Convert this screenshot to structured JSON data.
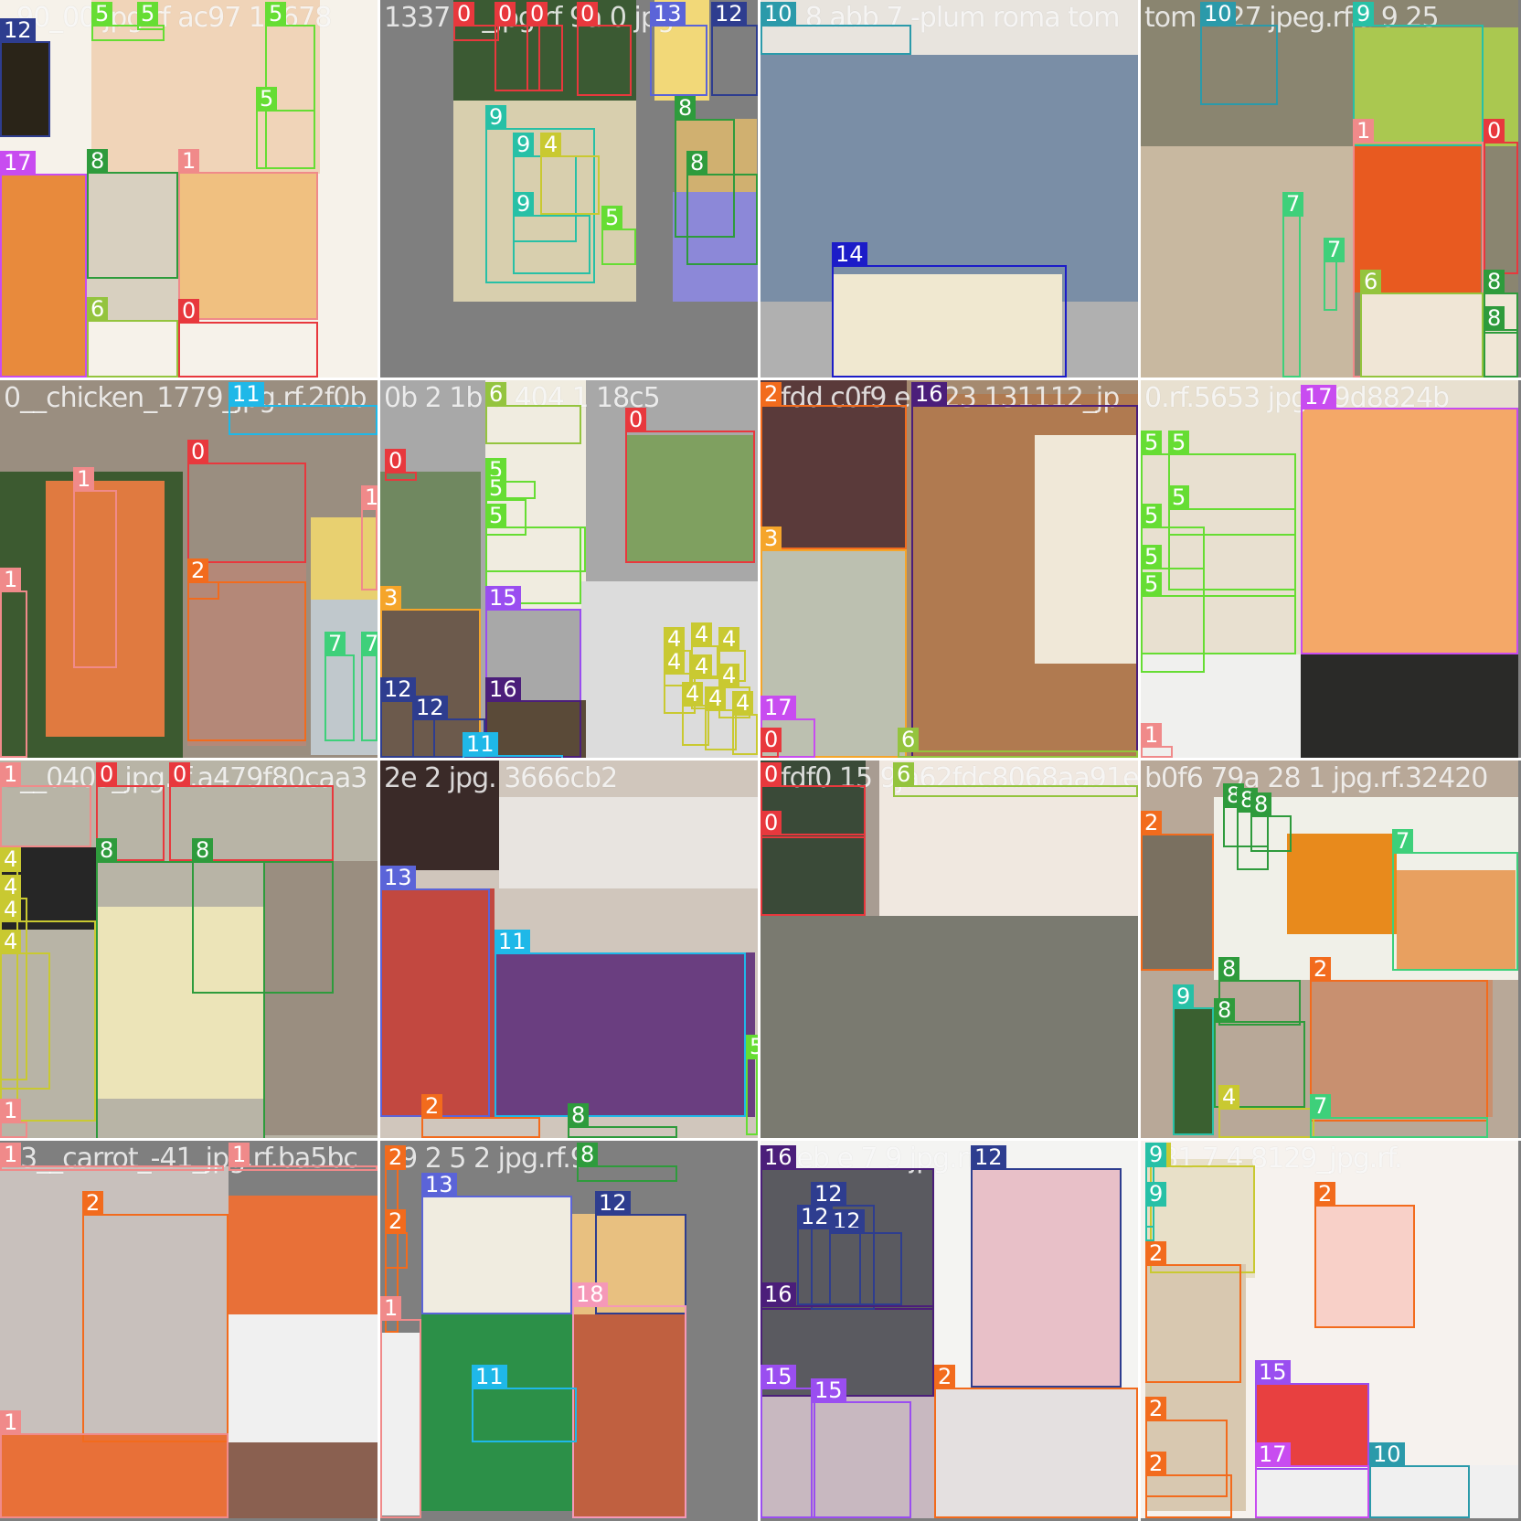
{
  "image": {
    "title": "",
    "kind": "object-detection training batch mosaic"
  },
  "class_colors": {
    "0": "#e8383d",
    "1": "#f08a8a",
    "2": "#f26b1d",
    "3": "#f5a52a",
    "4": "#c9c931",
    "5": "#66dd33",
    "6": "#94c43e",
    "7": "#3ed07a",
    "8": "#2e9b3c",
    "9": "#27c0a6",
    "10": "#2b9aaa",
    "11": "#1fb8e8",
    "12": "#2e3d8f",
    "13": "#5b64d8",
    "14": "#1c1cc8",
    "15": "#9a4ef0",
    "16": "#4b1e7a",
    "17": "#c84cf0",
    "18": "#f598b8"
  },
  "tiles": [
    {
      "filename": "_90_00 jpg rf ac97 17678",
      "bg": "#ffffff"
    },
    {
      "filename": "1337 7 _jpg.rf 9a 0 jpg",
      "bg": "#c4bfb4"
    },
    {
      "filename": "10 8 abb 7 -plum roma tom",
      "bg": "#8da0b8"
    },
    {
      "filename": "tom 2 27 jpeg.rf.a 9 25",
      "bg": "#8a8f82"
    },
    {
      "filename": "0__chicken_1779_jpg.rf.2f0b",
      "bg": "#9a8e80"
    },
    {
      "filename": "0b 2 1b 7 404 1 18c5",
      "bg": "#bab6ae"
    },
    {
      "filename": "2fdd c0f9 e7123 131112_jp",
      "bg": "#a58a70"
    },
    {
      "filename": "0.rf.5653 jpg.r 9d8824b",
      "bg": "#e8d8c8"
    },
    {
      "filename": "1__0405_jpg.rf.a479f80caa3",
      "bg": "#b8b4a6"
    },
    {
      "filename": "2e 2 jpg. 3666cb2",
      "bg": "#d0c6bc"
    },
    {
      "filename": "1fdf0 15 9ja62fdc8068aa91e",
      "bg": "#a89c92"
    },
    {
      "filename": "b0f6 79a 28 1 jpg.rf.32420",
      "bg": "#b8a898"
    },
    {
      "filename": "13__carrot_-41_jpg.rf.ba5bc",
      "bg": "#bcb2ac"
    },
    {
      "filename": "79 2 5 2 jpg.rf.9",
      "bg": "#e6c2a8"
    },
    {
      "filename": "a3eb e 7 9 jpg.rf.f5",
      "bg": "#c0b8c0"
    },
    {
      "filename": "981 7 4 8129_jpg.rf.",
      "bg": "#f0e8e0"
    }
  ],
  "boxes": [
    [
      0,
      "12",
      0,
      45,
      55,
      150
    ],
    [
      0,
      "5",
      100,
      8,
      180,
      45
    ],
    [
      0,
      "5",
      150,
      8,
      180,
      25
    ],
    [
      0,
      "5",
      290,
      20,
      345,
      185
    ],
    [
      0,
      "5",
      280,
      120,
      345,
      185
    ],
    [
      0,
      "17",
      0,
      190,
      95,
      413
    ],
    [
      0,
      "8",
      95,
      188,
      195,
      305
    ],
    [
      0,
      "1",
      195,
      188,
      348,
      350
    ],
    [
      0,
      "6",
      95,
      350,
      195,
      413
    ],
    [
      0,
      "0",
      195,
      352,
      348,
      413
    ],
    [
      1,
      "0",
      80,
      5,
      130,
      45
    ],
    [
      1,
      "0",
      125,
      5,
      175,
      100
    ],
    [
      1,
      "0",
      160,
      5,
      200,
      100
    ],
    [
      1,
      "0",
      215,
      10,
      275,
      105
    ],
    [
      1,
      "13",
      295,
      0,
      358,
      105
    ],
    [
      1,
      "12",
      362,
      0,
      413,
      105
    ],
    [
      1,
      "8",
      322,
      130,
      388,
      260
    ],
    [
      1,
      "8",
      335,
      190,
      413,
      290
    ],
    [
      1,
      "9",
      115,
      140,
      235,
      310
    ],
    [
      1,
      "9",
      145,
      170,
      215,
      265
    ],
    [
      1,
      "4",
      175,
      170,
      240,
      235
    ],
    [
      1,
      "9",
      145,
      235,
      230,
      300
    ],
    [
      1,
      "5",
      242,
      250,
      280,
      290
    ],
    [
      2,
      "10",
      0,
      5,
      165,
      60
    ],
    [
      2,
      "14",
      78,
      290,
      335,
      413
    ],
    [
      3,
      "10",
      65,
      5,
      150,
      115
    ],
    [
      3,
      "9",
      232,
      5,
      375,
      160
    ],
    [
      3,
      "1",
      232,
      155,
      375,
      413
    ],
    [
      3,
      "0",
      375,
      155,
      413,
      300
    ],
    [
      3,
      "7",
      155,
      235,
      175,
      413
    ],
    [
      3,
      "7",
      200,
      285,
      215,
      340
    ],
    [
      3,
      "6",
      240,
      320,
      375,
      413
    ],
    [
      3,
      "8",
      375,
      320,
      413,
      365
    ],
    [
      3,
      "8",
      375,
      360,
      413,
      413
    ],
    [
      4,
      "11",
      250,
      0,
      413,
      60
    ],
    [
      4,
      "0",
      205,
      90,
      335,
      200
    ],
    [
      4,
      "1",
      80,
      120,
      128,
      315
    ],
    [
      4,
      "1",
      0,
      230,
      30,
      413
    ],
    [
      4,
      "1",
      395,
      140,
      413,
      230
    ],
    [
      4,
      "2",
      205,
      220,
      240,
      240
    ],
    [
      4,
      "2",
      205,
      220,
      335,
      395
    ],
    [
      4,
      "7",
      355,
      300,
      388,
      395
    ],
    [
      4,
      "7",
      395,
      300,
      413,
      395
    ],
    [
      5,
      "6",
      115,
      10,
      220,
      70
    ],
    [
      5,
      "0",
      268,
      55,
      410,
      200
    ],
    [
      5,
      "0",
      5,
      100,
      40,
      110
    ],
    [
      5,
      "5",
      115,
      110,
      170,
      130
    ],
    [
      5,
      "5",
      115,
      130,
      160,
      170
    ],
    [
      5,
      "5",
      115,
      160,
      225,
      210
    ],
    [
      5,
      "5",
      115,
      160,
      220,
      245
    ],
    [
      5,
      "15",
      115,
      250,
      220,
      413
    ],
    [
      5,
      "3",
      0,
      250,
      110,
      413
    ],
    [
      5,
      "12",
      0,
      350,
      60,
      413
    ],
    [
      5,
      "12",
      35,
      370,
      115,
      413
    ],
    [
      5,
      "16",
      115,
      350,
      220,
      413
    ],
    [
      5,
      "11",
      90,
      410,
      200,
      413
    ],
    [
      5,
      "4",
      310,
      295,
      340,
      335
    ],
    [
      5,
      "4",
      340,
      290,
      370,
      325
    ],
    [
      5,
      "4",
      370,
      295,
      400,
      330
    ],
    [
      5,
      "4",
      310,
      320,
      345,
      365
    ],
    [
      5,
      "4",
      340,
      325,
      375,
      360
    ],
    [
      5,
      "4",
      370,
      335,
      405,
      370
    ],
    [
      5,
      "4",
      330,
      355,
      360,
      400
    ],
    [
      5,
      "4",
      355,
      360,
      390,
      405
    ],
    [
      5,
      "4",
      385,
      365,
      413,
      410
    ],
    [
      6,
      "2",
      0,
      0,
      160,
      185
    ],
    [
      6,
      "3",
      0,
      185,
      160,
      413
    ],
    [
      6,
      "16",
      165,
      15,
      413,
      413
    ],
    [
      6,
      "17",
      0,
      370,
      60,
      413
    ],
    [
      6,
      "6",
      150,
      405,
      413,
      413
    ],
    [
      6,
      "0",
      0,
      405,
      20,
      413
    ],
    [
      7,
      "5",
      0,
      80,
      170,
      300
    ],
    [
      7,
      "5",
      30,
      80,
      170,
      170
    ],
    [
      7,
      "5",
      30,
      140,
      170,
      230
    ],
    [
      7,
      "5",
      0,
      160,
      70,
      320
    ],
    [
      7,
      "5",
      0,
      205,
      70,
      300
    ],
    [
      7,
      "5",
      0,
      235,
      170,
      300
    ],
    [
      7,
      "17",
      175,
      30,
      413,
      300
    ],
    [
      7,
      "1",
      0,
      400,
      35,
      413
    ],
    [
      8,
      "1",
      0,
      5,
      100,
      95
    ],
    [
      8,
      "0",
      105,
      5,
      180,
      110
    ],
    [
      8,
      "0",
      185,
      5,
      365,
      110
    ],
    [
      8,
      "8",
      105,
      110,
      290,
      415
    ],
    [
      8,
      "8",
      210,
      110,
      365,
      255
    ],
    [
      8,
      "4",
      0,
      120,
      20,
      395
    ],
    [
      8,
      "4",
      0,
      150,
      30,
      350
    ],
    [
      8,
      "4",
      0,
      175,
      105,
      395
    ],
    [
      8,
      "4",
      0,
      210,
      55,
      360
    ],
    [
      8,
      "1",
      0,
      395,
      30,
      413
    ],
    [
      9,
      "13",
      0,
      140,
      120,
      390
    ],
    [
      9,
      "11",
      125,
      210,
      400,
      390
    ],
    [
      9,
      "5",
      400,
      325,
      413,
      410
    ],
    [
      9,
      "2",
      45,
      390,
      175,
      413
    ],
    [
      9,
      "8",
      205,
      400,
      325,
      413
    ],
    [
      10,
      "0",
      0,
      5,
      115,
      85
    ],
    [
      10,
      "0",
      0,
      80,
      115,
      170
    ],
    [
      10,
      "6",
      145,
      0,
      413,
      40
    ],
    [
      11,
      "2",
      0,
      80,
      80,
      230
    ],
    [
      11,
      "8",
      90,
      50,
      140,
      95
    ],
    [
      11,
      "8",
      105,
      55,
      140,
      120
    ],
    [
      11,
      "8",
      120,
      60,
      165,
      100
    ],
    [
      11,
      "7",
      275,
      100,
      413,
      230
    ],
    [
      11,
      "8",
      85,
      240,
      175,
      290
    ],
    [
      11,
      "2",
      185,
      240,
      380,
      395
    ],
    [
      11,
      "9",
      35,
      270,
      80,
      410
    ],
    [
      11,
      "8",
      80,
      285,
      180,
      380
    ],
    [
      11,
      "4",
      85,
      380,
      190,
      413
    ],
    [
      11,
      "7",
      185,
      390,
      380,
      413
    ],
    [
      12,
      "1",
      0,
      0,
      245,
      28
    ],
    [
      12,
      "2",
      90,
      80,
      250,
      330
    ],
    [
      12,
      "1",
      250,
      0,
      413,
      28
    ],
    [
      12,
      "1",
      0,
      320,
      250,
      413
    ],
    [
      13,
      "2",
      5,
      30,
      20,
      210
    ],
    [
      13,
      "2",
      5,
      100,
      30,
      140
    ],
    [
      13,
      "13",
      45,
      60,
      210,
      190
    ],
    [
      13,
      "12",
      235,
      80,
      335,
      190
    ],
    [
      13,
      "18",
      210,
      180,
      335,
      413
    ],
    [
      13,
      "1",
      0,
      195,
      45,
      413
    ],
    [
      13,
      "11",
      100,
      270,
      215,
      330
    ],
    [
      13,
      "8",
      215,
      0,
      325,
      45
    ],
    [
      14,
      "16",
      0,
      30,
      190,
      185
    ],
    [
      14,
      "12",
      55,
      70,
      125,
      185
    ],
    [
      14,
      "12",
      75,
      100,
      155,
      180
    ],
    [
      14,
      "12",
      40,
      95,
      110,
      180
    ],
    [
      14,
      "16",
      0,
      180,
      190,
      280
    ],
    [
      14,
      "12",
      230,
      30,
      395,
      270
    ],
    [
      14,
      "2",
      190,
      270,
      413,
      413
    ],
    [
      14,
      "15",
      0,
      270,
      60,
      413
    ],
    [
      14,
      "15",
      55,
      285,
      165,
      413
    ],
    [
      15,
      "4",
      10,
      20,
      125,
      145
    ],
    [
      15,
      "9",
      5,
      20,
      15,
      95
    ],
    [
      15,
      "9",
      5,
      70,
      15,
      110
    ],
    [
      15,
      "2",
      5,
      135,
      110,
      265
    ],
    [
      15,
      "2",
      5,
      305,
      95,
      390
    ],
    [
      15,
      "2",
      5,
      365,
      100,
      413
    ],
    [
      15,
      "2",
      190,
      70,
      300,
      205
    ],
    [
      15,
      "15",
      125,
      265,
      250,
      360
    ],
    [
      15,
      "17",
      125,
      355,
      250,
      413
    ],
    [
      15,
      "10",
      250,
      355,
      360,
      413
    ]
  ]
}
